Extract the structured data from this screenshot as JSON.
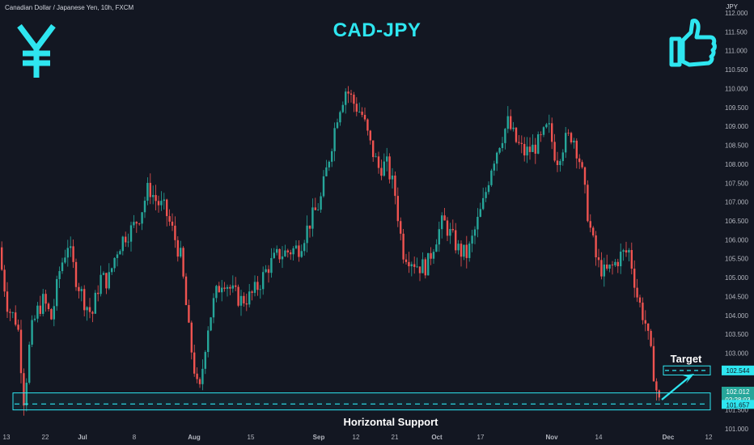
{
  "header": {
    "symbol_line": "Canadian Dollar / Japanese Yen, 10h, FXCM",
    "currency": "JPY"
  },
  "title": "CAD-JPY",
  "icons": {
    "left": "yen-icon",
    "right": "thumbs-up-icon"
  },
  "colors": {
    "background": "#131722",
    "up": "#26a69a",
    "down": "#ef5350",
    "accent": "#2ee6f0",
    "price_badge": "#26a69a"
  },
  "chart_data": {
    "type": "candlestick",
    "ylim": [
      101.0,
      112.0
    ],
    "yticks": [
      "112.000",
      "111.500",
      "111.000",
      "110.500",
      "110.000",
      "109.500",
      "109.000",
      "108.500",
      "108.000",
      "107.500",
      "107.000",
      "106.500",
      "106.000",
      "105.500",
      "105.000",
      "104.500",
      "104.000",
      "103.500",
      "103.000",
      "102.500",
      "102.000",
      "101.500",
      "101.000"
    ],
    "xlabels": [
      "13",
      "22",
      "Jul",
      "8",
      "Aug",
      "15",
      "Sep",
      "12",
      "21",
      "Oct",
      "17",
      "Nov",
      "14",
      "Dec",
      "12"
    ],
    "path": [
      [
        0,
        105.8
      ],
      [
        12,
        104.2
      ],
      [
        24,
        103.8
      ],
      [
        32,
        101.7
      ],
      [
        40,
        103.5
      ],
      [
        48,
        104.1
      ],
      [
        56,
        104.4
      ],
      [
        66,
        103.9
      ],
      [
        76,
        105.2
      ],
      [
        86,
        105.9
      ],
      [
        96,
        105.0
      ],
      [
        106,
        104.4
      ],
      [
        116,
        104.0
      ],
      [
        126,
        105.0
      ],
      [
        136,
        104.9
      ],
      [
        146,
        105.7
      ],
      [
        156,
        106.1
      ],
      [
        166,
        106.3
      ],
      [
        176,
        106.7
      ],
      [
        186,
        107.4
      ],
      [
        196,
        107.0
      ],
      [
        206,
        106.8
      ],
      [
        216,
        106.2
      ],
      [
        226,
        105.5
      ],
      [
        236,
        103.5
      ],
      [
        248,
        101.8
      ],
      [
        258,
        103.6
      ],
      [
        268,
        104.5
      ],
      [
        278,
        105.0
      ],
      [
        290,
        104.6
      ],
      [
        300,
        104.4
      ],
      [
        312,
        104.5
      ],
      [
        322,
        104.8
      ],
      [
        334,
        105.3
      ],
      [
        346,
        105.6
      ],
      [
        360,
        105.7
      ],
      [
        372,
        105.8
      ],
      [
        386,
        106.5
      ],
      [
        398,
        107.0
      ],
      [
        410,
        108.3
      ],
      [
        420,
        109.4
      ],
      [
        430,
        110.0
      ],
      [
        440,
        109.6
      ],
      [
        450,
        109.3
      ],
      [
        460,
        108.5
      ],
      [
        470,
        107.9
      ],
      [
        480,
        108.0
      ],
      [
        490,
        107.3
      ],
      [
        500,
        105.7
      ],
      [
        510,
        105.5
      ],
      [
        520,
        105.3
      ],
      [
        530,
        105.3
      ],
      [
        540,
        106.0
      ],
      [
        550,
        106.5
      ],
      [
        560,
        106.1
      ],
      [
        570,
        105.7
      ],
      [
        580,
        105.6
      ],
      [
        590,
        106.3
      ],
      [
        600,
        107.0
      ],
      [
        610,
        108.0
      ],
      [
        620,
        108.6
      ],
      [
        630,
        109.1
      ],
      [
        640,
        108.6
      ],
      [
        650,
        108.3
      ],
      [
        660,
        108.4
      ],
      [
        670,
        108.6
      ],
      [
        680,
        109.0
      ],
      [
        690,
        108.1
      ],
      [
        700,
        108.6
      ],
      [
        710,
        108.8
      ],
      [
        720,
        108.0
      ],
      [
        730,
        106.5
      ],
      [
        740,
        105.4
      ],
      [
        750,
        105.1
      ],
      [
        760,
        105.3
      ],
      [
        770,
        105.6
      ],
      [
        780,
        105.7
      ],
      [
        790,
        104.5
      ],
      [
        800,
        103.8
      ],
      [
        808,
        102.8
      ],
      [
        816,
        101.7
      ]
    ],
    "annotations": {
      "target_label": "Target",
      "target_level": 102.544,
      "support_label": "Horizontal Support",
      "support_level": 101.657,
      "support_zone": [
        101.5,
        101.95
      ]
    },
    "price_badges": {
      "target": "102.544",
      "current": "102.012",
      "countdown": "02:28:03",
      "support": "101.657"
    }
  }
}
